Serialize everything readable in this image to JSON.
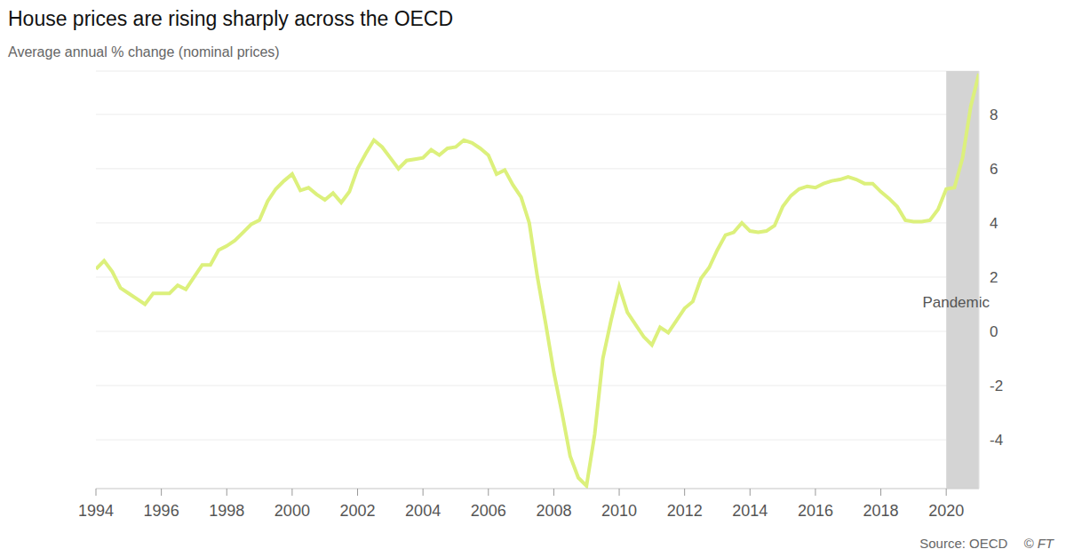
{
  "chart_data": {
    "type": "line",
    "title": "House prices are rising sharply across the OECD",
    "subtitle": "Average annual % change (nominal prices)",
    "x": [
      1994,
      1994.25,
      1994.5,
      1994.75,
      1995,
      1995.25,
      1995.5,
      1995.75,
      1996,
      1996.25,
      1996.5,
      1996.75,
      1997,
      1997.25,
      1997.5,
      1997.75,
      1998,
      1998.25,
      1998.5,
      1998.75,
      1999,
      1999.25,
      1999.5,
      1999.75,
      2000,
      2000.25,
      2000.5,
      2000.75,
      2001,
      2001.25,
      2001.5,
      2001.75,
      2002,
      2002.25,
      2002.5,
      2002.75,
      2003,
      2003.25,
      2003.5,
      2003.75,
      2004,
      2004.25,
      2004.5,
      2004.75,
      2005,
      2005.25,
      2005.5,
      2005.75,
      2006,
      2006.25,
      2006.5,
      2006.75,
      2007,
      2007.25,
      2007.5,
      2007.75,
      2008,
      2008.25,
      2008.5,
      2008.75,
      2009,
      2009.25,
      2009.5,
      2009.75,
      2010,
      2010.25,
      2010.5,
      2010.75,
      2011,
      2011.25,
      2011.5,
      2011.75,
      2012,
      2012.25,
      2012.5,
      2012.75,
      2013,
      2013.25,
      2013.5,
      2013.75,
      2014,
      2014.25,
      2014.5,
      2014.75,
      2015,
      2015.25,
      2015.5,
      2015.75,
      2016,
      2016.25,
      2016.5,
      2016.75,
      2017,
      2017.25,
      2017.5,
      2017.75,
      2018,
      2018.25,
      2018.5,
      2018.75,
      2019,
      2019.25,
      2019.5,
      2019.75,
      2020,
      2020.25,
      2020.5,
      2020.75,
      2021
    ],
    "values": [
      2.3,
      2.6,
      2.2,
      1.6,
      1.4,
      1.2,
      1.0,
      1.4,
      1.4,
      1.4,
      1.7,
      1.55,
      2.0,
      2.45,
      2.45,
      3.0,
      3.15,
      3.35,
      3.65,
      3.95,
      4.1,
      4.8,
      5.25,
      5.55,
      5.8,
      5.2,
      5.3,
      5.05,
      4.85,
      5.1,
      4.75,
      5.15,
      6.0,
      6.55,
      7.05,
      6.8,
      6.4,
      6.0,
      6.3,
      6.35,
      6.4,
      6.7,
      6.5,
      6.75,
      6.8,
      7.05,
      6.95,
      6.75,
      6.5,
      5.8,
      5.95,
      5.4,
      4.95,
      4.0,
      2.0,
      0.3,
      -1.5,
      -3.0,
      -4.6,
      -5.4,
      -5.7,
      -3.8,
      -1.0,
      0.4,
      1.65,
      0.7,
      0.25,
      -0.2,
      -0.5,
      0.15,
      -0.05,
      0.4,
      0.85,
      1.1,
      1.95,
      2.35,
      3.0,
      3.55,
      3.65,
      4.0,
      3.7,
      3.65,
      3.7,
      3.9,
      4.6,
      5.0,
      5.25,
      5.35,
      5.3,
      5.45,
      5.55,
      5.6,
      5.7,
      5.6,
      5.45,
      5.45,
      5.15,
      4.9,
      4.6,
      4.1,
      4.05,
      4.05,
      4.1,
      4.5,
      5.25,
      5.3,
      6.4,
      8.3,
      9.5
    ],
    "color": "#dcf07c",
    "xlim": [
      1994,
      2021
    ],
    "xticks": [
      1994,
      1996,
      1998,
      2000,
      2002,
      2004,
      2006,
      2008,
      2010,
      2012,
      2014,
      2016,
      2018,
      2020
    ],
    "ylim": [
      -5.8,
      9.6
    ],
    "yticks": [
      -4,
      -2,
      0,
      2,
      4,
      6,
      8
    ],
    "grid": true,
    "shaded_region": {
      "label": "Pandemic",
      "x": [
        2020,
        2021
      ]
    },
    "source": "Source: OECD",
    "credit": "© FT"
  }
}
